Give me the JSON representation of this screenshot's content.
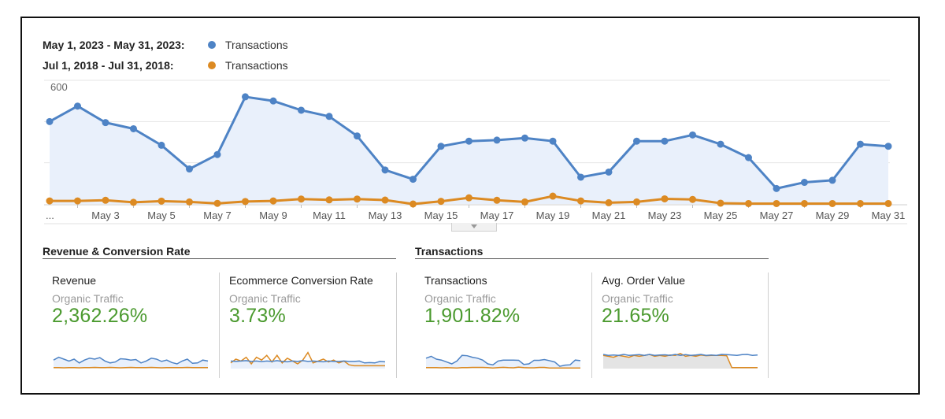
{
  "legend": {
    "entries": [
      {
        "period": "May 1, 2023 - May 31, 2023:",
        "metric": "Transactions",
        "color": "#4e83c5"
      },
      {
        "period": "Jul 1, 2018 - Jul 31, 2018:",
        "metric": "Transactions",
        "color": "#dc8a22"
      }
    ]
  },
  "chart_data": {
    "type": "line",
    "y_ticks": [
      "600",
      "400",
      "200"
    ],
    "ylim": [
      0,
      600
    ],
    "x_labels": [
      "...",
      "May 3",
      "May 5",
      "May 7",
      "May 9",
      "May 11",
      "May 13",
      "May 15",
      "May 17",
      "May 19",
      "May 21",
      "May 23",
      "May 25",
      "May 27",
      "May 29",
      "May 31"
    ],
    "grid": true,
    "series": [
      {
        "name": "May 1, 2023 - May 31, 2023: Transactions",
        "color": "#4e83c5",
        "values": [
          400,
          475,
          395,
          365,
          285,
          170,
          240,
          520,
          500,
          455,
          425,
          330,
          165,
          120,
          280,
          305,
          310,
          320,
          305,
          130,
          155,
          305,
          305,
          335,
          290,
          225,
          75,
          105,
          115,
          290,
          280
        ]
      },
      {
        "name": "Jul 1, 2018 - Jul 31, 2018: Transactions",
        "color": "#dc8a22",
        "values": [
          15,
          15,
          18,
          8,
          14,
          10,
          3,
          12,
          15,
          24,
          20,
          24,
          19,
          0,
          13,
          30,
          18,
          10,
          38,
          15,
          6,
          10,
          25,
          22,
          4,
          2,
          2,
          2,
          2,
          2,
          2
        ]
      }
    ]
  },
  "sections": [
    {
      "title": "Revenue & Conversion Rate"
    },
    {
      "title": "Transactions"
    }
  ],
  "cards": [
    {
      "title": "Revenue",
      "segment": "Organic Traffic",
      "value": "2,362.26%",
      "spark": {
        "a": [
          0.55,
          0.4,
          0.5,
          0.6,
          0.5,
          0.7,
          0.55,
          0.45,
          0.5,
          0.42,
          0.6,
          0.7,
          0.65,
          0.48,
          0.5,
          0.55,
          0.52,
          0.7,
          0.6,
          0.45,
          0.5,
          0.62,
          0.55,
          0.68,
          0.75,
          0.6,
          0.5,
          0.72,
          0.7,
          0.55,
          0.6
        ],
        "b": [
          0.95,
          0.95,
          0.96,
          0.95,
          0.95,
          0.96,
          0.95,
          0.95,
          0.94,
          0.95,
          0.95,
          0.94,
          0.95,
          0.96,
          0.95,
          0.94,
          0.95,
          0.95,
          0.95,
          0.94,
          0.95,
          0.96,
          0.95,
          0.95,
          0.95,
          0.95,
          0.94,
          0.95,
          0.95,
          0.95,
          0.95
        ],
        "fill": "a"
      }
    },
    {
      "title": "Ecommerce Conversion Rate",
      "segment": "Organic Traffic",
      "value": "3.73%",
      "spark": {
        "a": [
          0.6,
          0.62,
          0.6,
          0.58,
          0.62,
          0.6,
          0.63,
          0.6,
          0.62,
          0.58,
          0.62,
          0.64,
          0.6,
          0.62,
          0.58,
          0.62,
          0.6,
          0.62,
          0.64,
          0.6,
          0.62,
          0.62,
          0.6,
          0.62,
          0.62,
          0.6,
          0.7,
          0.68,
          0.7,
          0.62,
          0.64
        ],
        "b": [
          0.7,
          0.5,
          0.6,
          0.4,
          0.75,
          0.4,
          0.55,
          0.3,
          0.65,
          0.3,
          0.7,
          0.45,
          0.6,
          0.75,
          0.55,
          0.15,
          0.7,
          0.6,
          0.5,
          0.65,
          0.55,
          0.7,
          0.6,
          0.8,
          0.85,
          0.85,
          0.85,
          0.85,
          0.85,
          0.85,
          0.85
        ],
        "fill": "a"
      }
    },
    {
      "title": "Transactions",
      "segment": "Organic Traffic",
      "value": "1,901.82%",
      "spark": {
        "a": [
          0.45,
          0.35,
          0.5,
          0.55,
          0.65,
          0.75,
          0.6,
          0.3,
          0.32,
          0.4,
          0.45,
          0.55,
          0.75,
          0.8,
          0.6,
          0.55,
          0.55,
          0.55,
          0.56,
          0.78,
          0.75,
          0.56,
          0.56,
          0.52,
          0.58,
          0.65,
          0.88,
          0.82,
          0.8,
          0.55,
          0.58
        ],
        "b": [
          0.95,
          0.95,
          0.95,
          0.96,
          0.95,
          0.96,
          0.97,
          0.95,
          0.95,
          0.94,
          0.94,
          0.94,
          0.95,
          0.97,
          0.95,
          0.93,
          0.95,
          0.96,
          0.92,
          0.95,
          0.96,
          0.96,
          0.94,
          0.94,
          0.97,
          0.97,
          0.97,
          0.97,
          0.97,
          0.97,
          0.97
        ],
        "fill": "a"
      }
    },
    {
      "title": "Avg. Order Value",
      "segment": "Organic Traffic",
      "value": "21.65%",
      "spark": {
        "a": [
          0.25,
          0.3,
          0.28,
          0.3,
          0.25,
          0.3,
          0.28,
          0.26,
          0.3,
          0.25,
          0.3,
          0.28,
          0.27,
          0.3,
          0.25,
          0.3,
          0.26,
          0.3,
          0.28,
          0.25,
          0.3,
          0.28,
          0.3,
          0.25,
          0.26,
          0.28,
          0.3,
          0.26,
          0.25,
          0.3,
          0.28
        ],
        "b": [
          0.3,
          0.35,
          0.4,
          0.3,
          0.35,
          0.4,
          0.3,
          0.35,
          0.3,
          0.25,
          0.35,
          0.3,
          0.35,
          0.28,
          0.3,
          0.2,
          0.35,
          0.3,
          0.35,
          0.28,
          0.32,
          0.3,
          0.3,
          0.3,
          0.32,
          0.95,
          0.95,
          0.95,
          0.95,
          0.95,
          0.95
        ],
        "fill": "b"
      }
    }
  ]
}
